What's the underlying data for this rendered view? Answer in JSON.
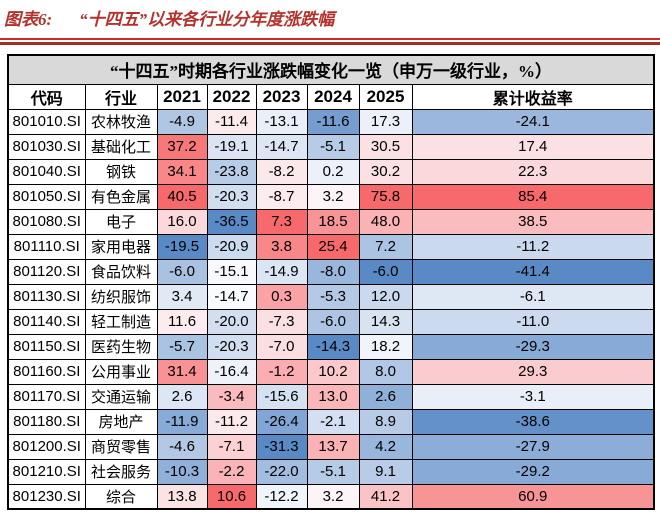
{
  "figure": {
    "label": "图表6:",
    "title": "“十四五”以来各行业分年度涨跌幅"
  },
  "chart_data": {
    "type": "table",
    "title": "“十四五”时期各行业涨跌幅变化一览（申万一级行业，%）",
    "columns": {
      "code": "代码",
      "industry": "行业",
      "years": [
        "2021",
        "2022",
        "2023",
        "2024",
        "2025"
      ],
      "cumulative": "累计收益率"
    },
    "rows": [
      {
        "code": "801010.SI",
        "industry": "农林牧渔",
        "values": [
          -4.9,
          -11.4,
          -13.1,
          -11.6,
          17.3,
          -24.1
        ]
      },
      {
        "code": "801030.SI",
        "industry": "基础化工",
        "values": [
          37.2,
          -19.1,
          -14.7,
          -5.1,
          30.5,
          17.4
        ]
      },
      {
        "code": "801040.SI",
        "industry": "钢铁",
        "values": [
          34.1,
          -23.8,
          -8.2,
          0.2,
          30.2,
          22.3
        ]
      },
      {
        "code": "801050.SI",
        "industry": "有色金属",
        "values": [
          40.5,
          -20.3,
          -8.7,
          3.2,
          75.8,
          85.4
        ]
      },
      {
        "code": "801080.SI",
        "industry": "电子",
        "values": [
          16.0,
          -36.5,
          7.3,
          18.5,
          48.0,
          38.5
        ]
      },
      {
        "code": "801110.SI",
        "industry": "家用电器",
        "values": [
          -19.5,
          -20.9,
          3.8,
          25.4,
          7.2,
          -11.2
        ]
      },
      {
        "code": "801120.SI",
        "industry": "食品饮料",
        "values": [
          -6.0,
          -15.1,
          -14.9,
          -8.0,
          -6.0,
          -41.4
        ]
      },
      {
        "code": "801130.SI",
        "industry": "纺织服饰",
        "values": [
          3.4,
          -14.7,
          0.3,
          -5.3,
          12.0,
          -6.1
        ]
      },
      {
        "code": "801140.SI",
        "industry": "轻工制造",
        "values": [
          11.6,
          -20.0,
          -7.3,
          -6.0,
          14.3,
          -11.0
        ]
      },
      {
        "code": "801150.SI",
        "industry": "医药生物",
        "values": [
          -5.7,
          -20.3,
          -7.0,
          -14.3,
          18.2,
          -29.3
        ]
      },
      {
        "code": "801160.SI",
        "industry": "公用事业",
        "values": [
          31.4,
          -16.4,
          -1.2,
          10.2,
          8.0,
          29.3
        ]
      },
      {
        "code": "801170.SI",
        "industry": "交通运输",
        "values": [
          2.6,
          -3.4,
          -15.6,
          13.0,
          2.6,
          -3.1
        ]
      },
      {
        "code": "801180.SI",
        "industry": "房地产",
        "values": [
          -11.9,
          -11.2,
          -26.4,
          -2.1,
          8.9,
          -38.6
        ]
      },
      {
        "code": "801200.SI",
        "industry": "商贸零售",
        "values": [
          -4.6,
          -7.1,
          -31.3,
          13.7,
          4.2,
          -27.9
        ]
      },
      {
        "code": "801210.SI",
        "industry": "社会服务",
        "values": [
          -10.3,
          -2.2,
          -22.0,
          -5.1,
          9.1,
          -29.2
        ]
      },
      {
        "code": "801230.SI",
        "industry": "综合",
        "values": [
          13.8,
          10.6,
          -12.2,
          3.2,
          41.2,
          60.9
        ]
      }
    ],
    "value_format": "one-decimal",
    "colorscale": {
      "description": "per-column 3-color scale: min=blue, column-mean=white, max=red",
      "low": "#5A8AC6",
      "mid": "#FCFCFF",
      "high": "#F8696B"
    }
  },
  "colors": {
    "title_red": "#B5312C",
    "rule_thin_red": "#CC2B26",
    "rule_thick_red": "#A82A25",
    "header_gray": "#D9D9D9",
    "grid_black": "#000000"
  }
}
